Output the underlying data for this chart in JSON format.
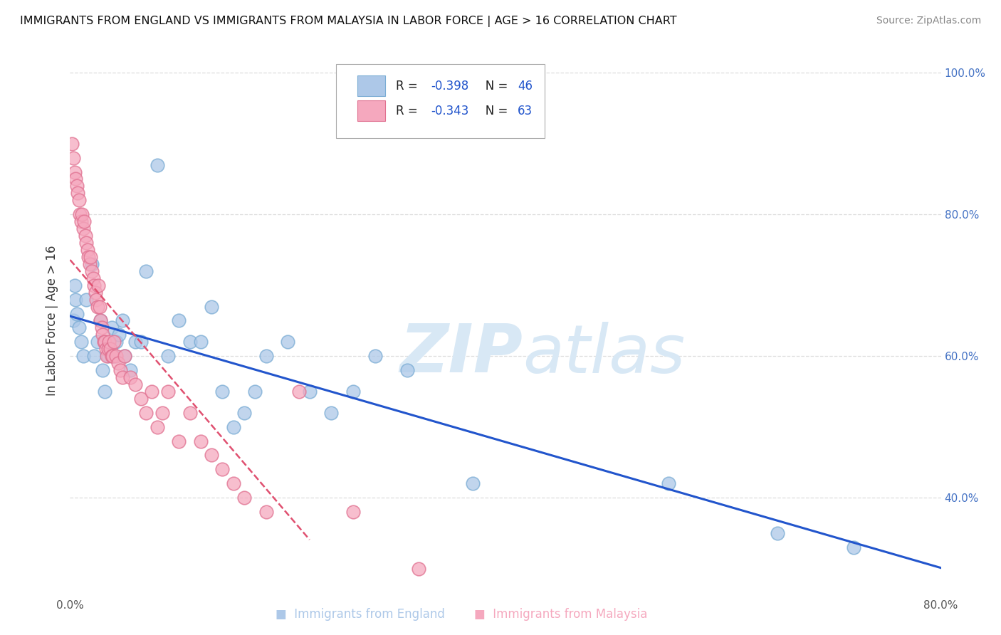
{
  "title": "IMMIGRANTS FROM ENGLAND VS IMMIGRANTS FROM MALAYSIA IN LABOR FORCE | AGE > 16 CORRELATION CHART",
  "source": "Source: ZipAtlas.com",
  "ylabel": "In Labor Force | Age > 16",
  "xlabel": "",
  "xlim": [
    0.0,
    0.8
  ],
  "ylim": [
    0.26,
    1.04
  ],
  "england_R": "-0.398",
  "england_N": "46",
  "malaysia_R": "-0.343",
  "malaysia_N": "63",
  "england_color": "#adc8e8",
  "england_edge_color": "#7aacd4",
  "england_line_color": "#2255cc",
  "malaysia_color": "#f5a8be",
  "malaysia_edge_color": "#e07090",
  "malaysia_line_color": "#e05070",
  "background_color": "#ffffff",
  "grid_color": "#dddddd",
  "watermark_color": "#d8e8f5",
  "england_x": [
    0.003,
    0.004,
    0.005,
    0.006,
    0.008,
    0.01,
    0.012,
    0.015,
    0.02,
    0.022,
    0.025,
    0.028,
    0.03,
    0.032,
    0.035,
    0.038,
    0.04,
    0.042,
    0.045,
    0.048,
    0.05,
    0.055,
    0.06,
    0.065,
    0.07,
    0.08,
    0.09,
    0.1,
    0.11,
    0.12,
    0.13,
    0.14,
    0.15,
    0.16,
    0.17,
    0.18,
    0.2,
    0.22,
    0.24,
    0.26,
    0.28,
    0.31,
    0.37,
    0.55,
    0.65,
    0.72
  ],
  "england_y": [
    0.65,
    0.7,
    0.68,
    0.66,
    0.64,
    0.62,
    0.6,
    0.68,
    0.73,
    0.6,
    0.62,
    0.65,
    0.58,
    0.55,
    0.6,
    0.64,
    0.6,
    0.62,
    0.63,
    0.65,
    0.6,
    0.58,
    0.62,
    0.62,
    0.72,
    0.87,
    0.6,
    0.65,
    0.62,
    0.62,
    0.67,
    0.55,
    0.5,
    0.52,
    0.55,
    0.6,
    0.62,
    0.55,
    0.52,
    0.55,
    0.6,
    0.58,
    0.42,
    0.42,
    0.35,
    0.33
  ],
  "malaysia_x": [
    0.002,
    0.003,
    0.004,
    0.005,
    0.006,
    0.007,
    0.008,
    0.009,
    0.01,
    0.011,
    0.012,
    0.013,
    0.014,
    0.015,
    0.016,
    0.017,
    0.018,
    0.019,
    0.02,
    0.021,
    0.022,
    0.023,
    0.024,
    0.025,
    0.026,
    0.027,
    0.028,
    0.029,
    0.03,
    0.031,
    0.032,
    0.033,
    0.034,
    0.035,
    0.036,
    0.037,
    0.038,
    0.039,
    0.04,
    0.042,
    0.044,
    0.046,
    0.048,
    0.05,
    0.055,
    0.06,
    0.065,
    0.07,
    0.075,
    0.08,
    0.085,
    0.09,
    0.1,
    0.11,
    0.12,
    0.13,
    0.14,
    0.15,
    0.16,
    0.18,
    0.21,
    0.26,
    0.32
  ],
  "malaysia_y": [
    0.9,
    0.88,
    0.86,
    0.85,
    0.84,
    0.83,
    0.82,
    0.8,
    0.79,
    0.8,
    0.78,
    0.79,
    0.77,
    0.76,
    0.75,
    0.74,
    0.73,
    0.74,
    0.72,
    0.71,
    0.7,
    0.69,
    0.68,
    0.67,
    0.7,
    0.67,
    0.65,
    0.64,
    0.63,
    0.62,
    0.62,
    0.61,
    0.6,
    0.61,
    0.62,
    0.61,
    0.6,
    0.6,
    0.62,
    0.6,
    0.59,
    0.58,
    0.57,
    0.6,
    0.57,
    0.56,
    0.54,
    0.52,
    0.55,
    0.5,
    0.52,
    0.55,
    0.48,
    0.52,
    0.48,
    0.46,
    0.44,
    0.42,
    0.4,
    0.38,
    0.55,
    0.38,
    0.3
  ],
  "ytick_positions": [
    0.4,
    0.6,
    0.8,
    1.0
  ],
  "ytick_labels": [
    "40.0%",
    "60.0%",
    "80.0%",
    "100.0%"
  ]
}
